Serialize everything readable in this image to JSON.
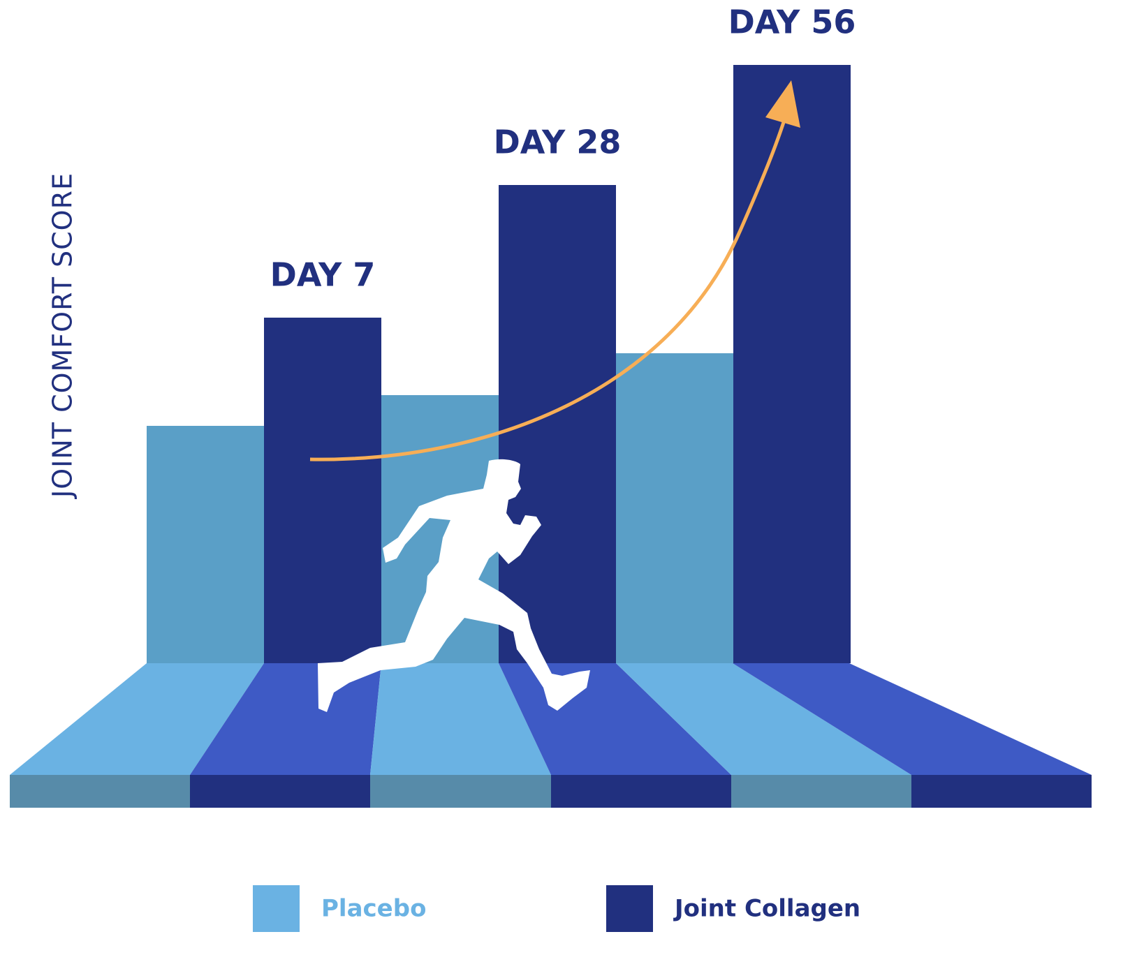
{
  "chart_data": {
    "type": "bar",
    "y_label": "JOINT COMFORT SCORE",
    "categories": [
      "DAY 7",
      "DAY 28",
      "DAY 56"
    ],
    "series": [
      {
        "name": "Placebo",
        "color": "#5a9fc7",
        "values": [
          340,
          384,
          444
        ]
      },
      {
        "name": "Joint Collagen",
        "color": "#21307f",
        "values": [
          495,
          685,
          857
        ]
      }
    ],
    "ylim": [
      0,
      860
    ]
  }
}
